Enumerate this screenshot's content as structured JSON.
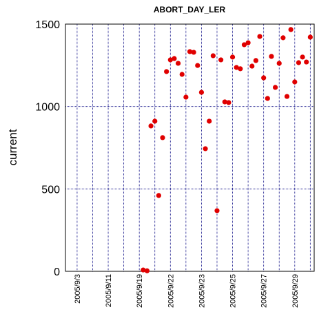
{
  "chart_data": {
    "type": "scatter",
    "title": "ABORT_DAY_LER",
    "y_label": "current",
    "categories": [
      null,
      null,
      null,
      "2005/9/3",
      null,
      null,
      null,
      null,
      null,
      null,
      null,
      "2005/9/11",
      null,
      null,
      null,
      null,
      null,
      null,
      null,
      "2005/9/19",
      null,
      null,
      null,
      null,
      null,
      null,
      null,
      "2005/9/22",
      null,
      null,
      null,
      null,
      null,
      null,
      null,
      "2005/9/23",
      null,
      null,
      null,
      null,
      null,
      null,
      null,
      "2005/9/25",
      null,
      null,
      null,
      null,
      null,
      null,
      null,
      "2005/9/27",
      null,
      null,
      null,
      null,
      null,
      null,
      null,
      "2005/9/29",
      null,
      null,
      null,
      null
    ],
    "series": [
      {
        "color": "#e00000",
        "values": [
          null,
          null,
          null,
          null,
          null,
          null,
          null,
          null,
          null,
          null,
          null,
          null,
          null,
          null,
          null,
          null,
          null,
          null,
          null,
          null,
          8,
          3,
          882,
          911,
          460,
          811,
          1212,
          1283,
          1291,
          1262,
          1195,
          1057,
          1333,
          1329,
          1249,
          1086,
          744,
          911,
          1308,
          368,
          1283,
          1028,
          1024,
          1300,
          1237,
          1229,
          1375,
          1387,
          1245,
          1279,
          1425,
          1174,
          1049,
          1304,
          1116,
          1262,
          1417,
          1061,
          1467,
          1149,
          1266,
          1300,
          1270,
          1421
        ]
      }
    ],
    "ylim": [
      0,
      1500
    ],
    "yticks": [
      0,
      500,
      1000,
      1500
    ],
    "grid": true,
    "grid_color": "#000080"
  }
}
